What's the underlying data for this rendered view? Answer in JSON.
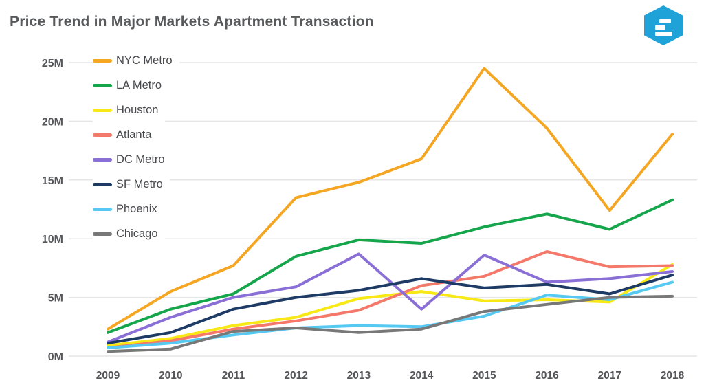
{
  "header": {
    "title": "Price Trend in Major Markets Apartment Transaction",
    "logo": {
      "name": "hexagon-logo",
      "color": "#1FA2D8"
    }
  },
  "theme": {
    "text_color": "#58595b",
    "axis_label_color": "#55565a",
    "grid_color": "#e6e6e6",
    "background": "#ffffff"
  },
  "chart_data": {
    "type": "line",
    "title": "Price Trend in Major Markets Apartment Transaction",
    "x": [
      2009,
      2010,
      2011,
      2012,
      2013,
      2014,
      2015,
      2016,
      2017,
      2018
    ],
    "y_ticks": [
      "0M",
      "5M",
      "10M",
      "15M",
      "20M",
      "25M"
    ],
    "ylim": [
      0,
      25
    ],
    "values_unit": "millions",
    "grid": "horizontal",
    "legend_position": "top-left-vertical",
    "series": [
      {
        "name": "NYC Metro",
        "color": "#F5A623",
        "values": [
          2.3,
          5.5,
          7.7,
          13.5,
          14.8,
          16.8,
          24.5,
          19.4,
          12.4,
          18.9
        ]
      },
      {
        "name": "LA Metro",
        "color": "#15A64C",
        "values": [
          2.0,
          4.0,
          5.3,
          8.5,
          9.9,
          9.6,
          11.0,
          12.1,
          10.8,
          13.3
        ]
      },
      {
        "name": "Houston",
        "color": "#F8E916",
        "values": [
          0.9,
          1.5,
          2.6,
          3.3,
          4.9,
          5.5,
          4.7,
          4.8,
          4.6,
          7.8
        ]
      },
      {
        "name": "Atlanta",
        "color": "#F4796B",
        "values": [
          0.7,
          1.3,
          2.3,
          3.0,
          3.9,
          6.0,
          6.8,
          8.9,
          7.6,
          7.7
        ]
      },
      {
        "name": "DC Metro",
        "color": "#8A70D6",
        "values": [
          1.2,
          3.3,
          5.0,
          5.9,
          8.7,
          4.0,
          8.6,
          6.3,
          6.6,
          7.2
        ]
      },
      {
        "name": "SF Metro",
        "color": "#1E3B66",
        "values": [
          1.1,
          2.0,
          4.0,
          5.0,
          5.6,
          6.6,
          5.8,
          6.1,
          5.3,
          6.9
        ]
      },
      {
        "name": "Phoenix",
        "color": "#55C9F2",
        "values": [
          0.7,
          1.1,
          1.8,
          2.4,
          2.6,
          2.5,
          3.4,
          5.2,
          4.8,
          6.3
        ]
      },
      {
        "name": "Chicago",
        "color": "#787878",
        "values": [
          0.4,
          0.6,
          2.1,
          2.4,
          2.0,
          2.3,
          3.8,
          4.4,
          5.0,
          5.1
        ]
      }
    ]
  }
}
